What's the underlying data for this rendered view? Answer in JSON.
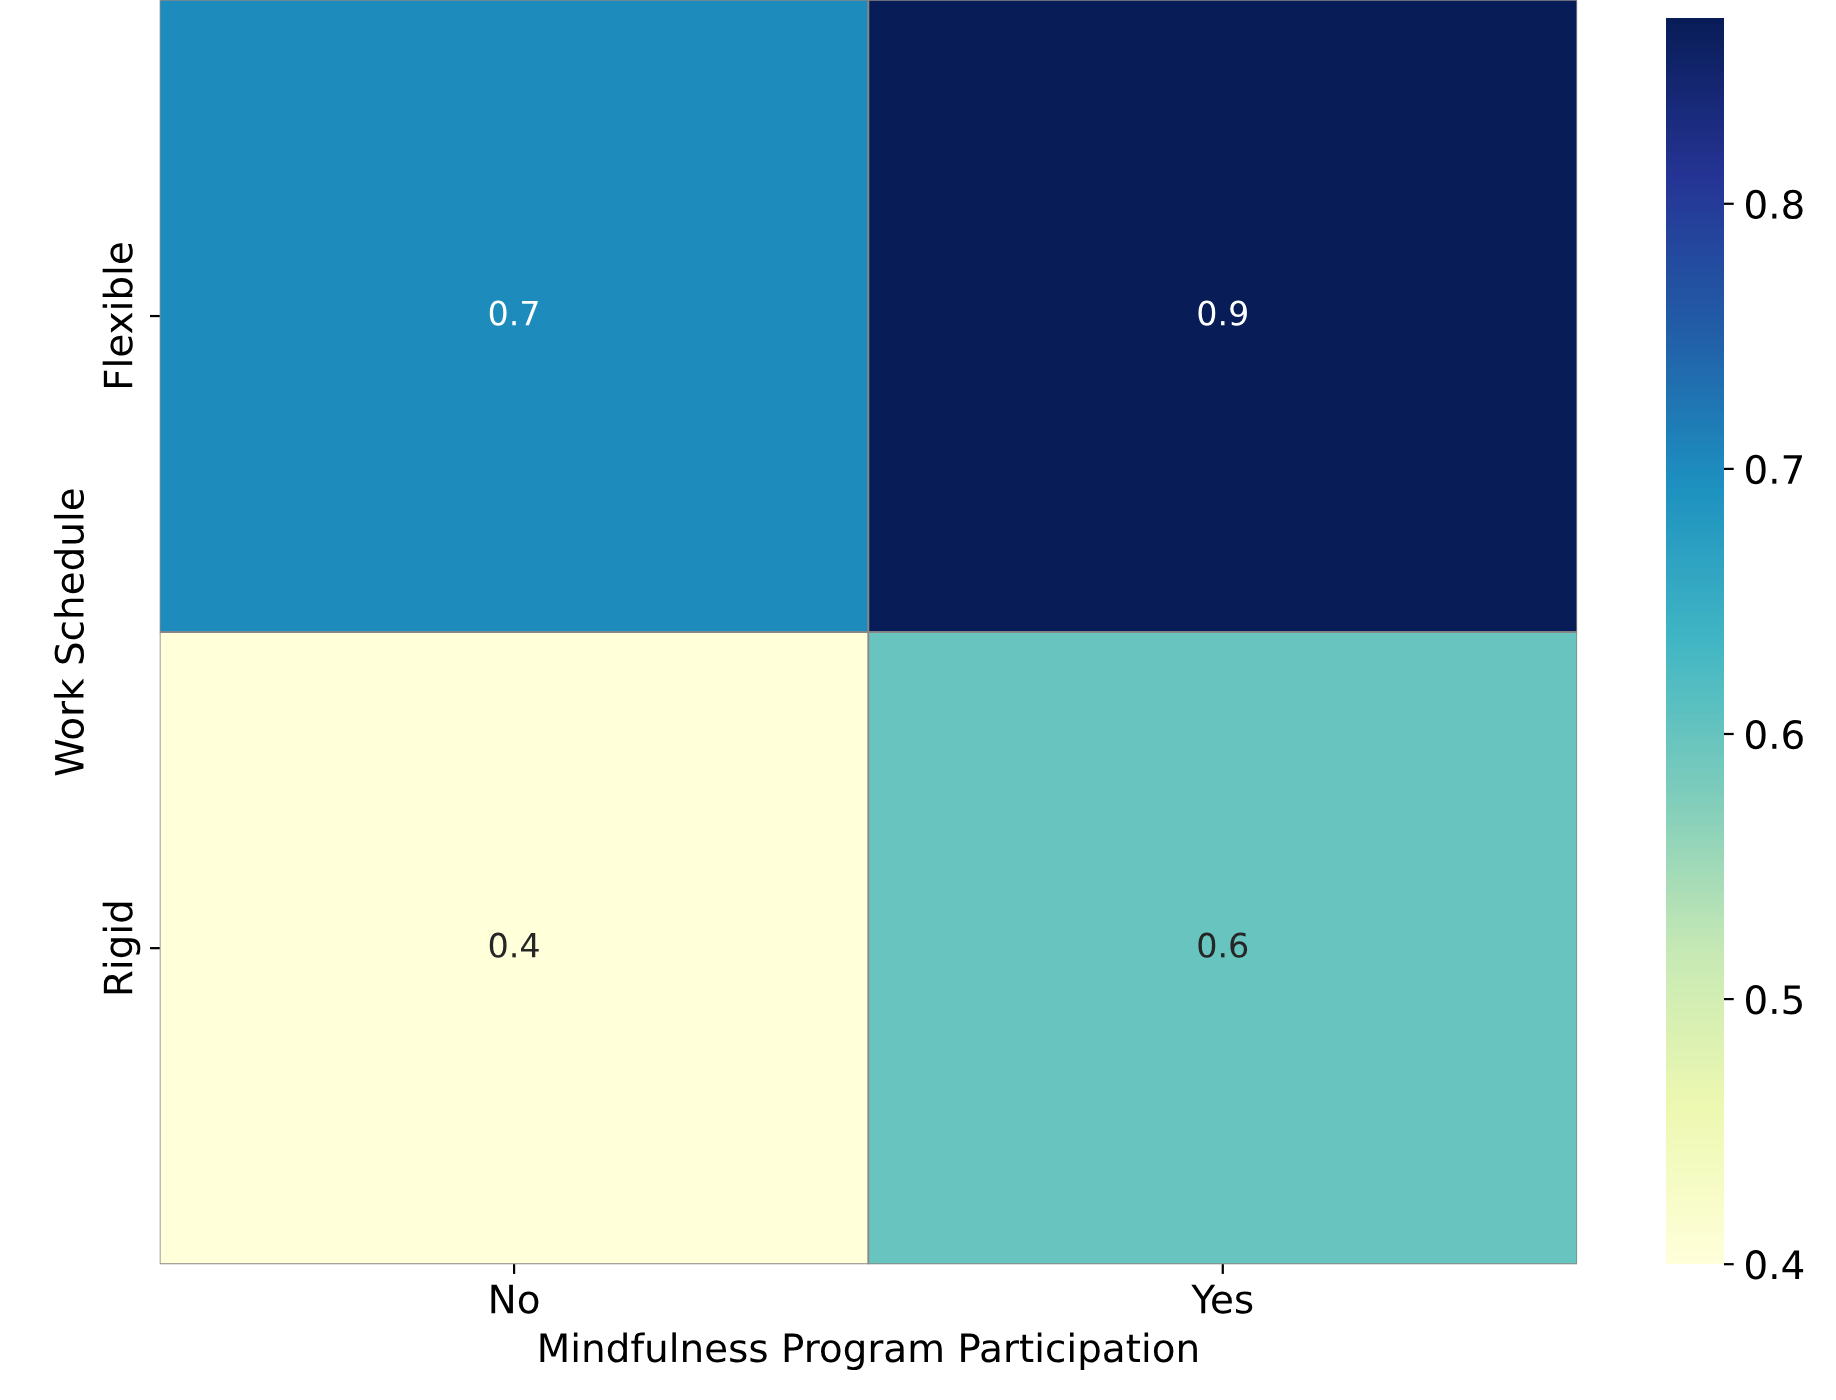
{
  "chart_data": {
    "type": "heatmap",
    "xlabel": "Mindfulness Program Participation",
    "ylabel": "Work Schedule",
    "categories": [
      "No",
      "Yes"
    ],
    "y_categories": [
      "Flexible",
      "Rigid"
    ],
    "cells": [
      [
        0.7,
        0.87
      ],
      [
        0.4,
        0.6
      ]
    ],
    "cell_labels": [
      [
        "0.7",
        "0.9"
      ],
      [
        "0.4",
        "0.6"
      ]
    ],
    "clim": [
      0.4,
      0.87
    ],
    "cticks": [
      0.4,
      0.5,
      0.6,
      0.7,
      0.8
    ]
  }
}
